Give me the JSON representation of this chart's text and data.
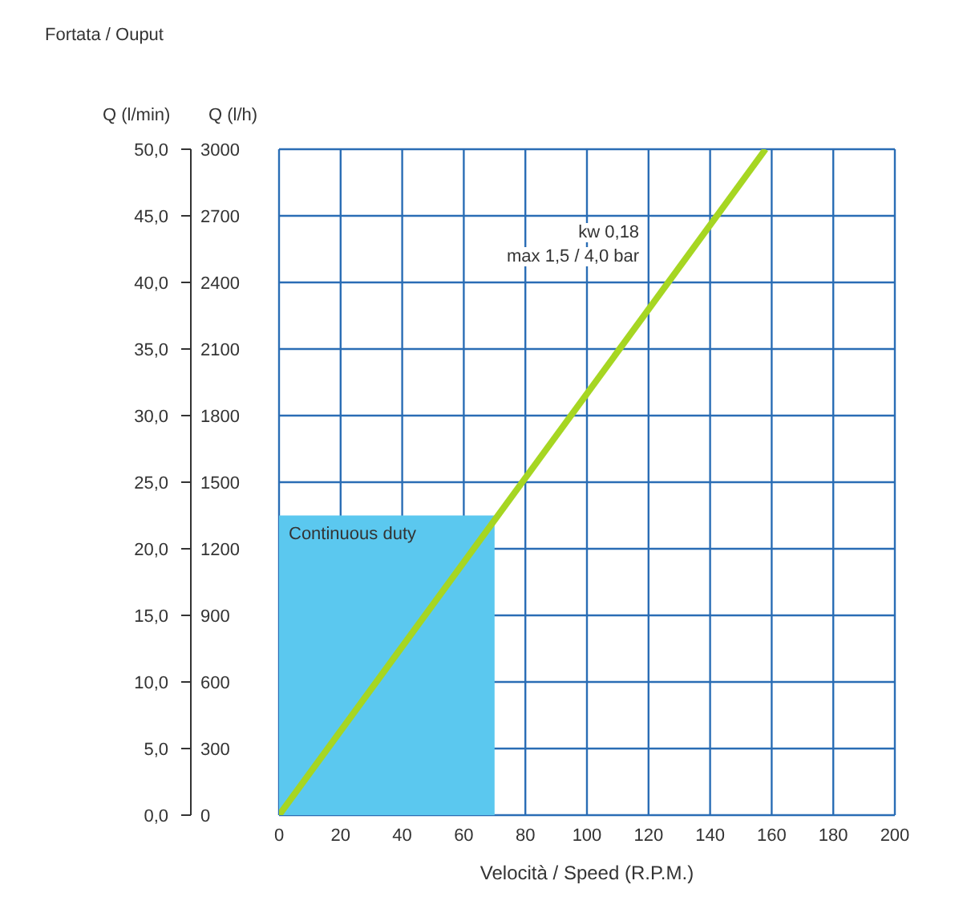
{
  "chart_data": {
    "type": "line",
    "title": "Fortata / Ouput",
    "xlabel": "Velocità / Speed (R.P.M.)",
    "ylabel": "Q (l/min)",
    "y2label": "Q (l/h)",
    "xlim": [
      0,
      200
    ],
    "xticks": [
      0,
      20,
      40,
      60,
      80,
      100,
      120,
      140,
      160,
      180,
      200
    ],
    "ylim": [
      0,
      50
    ],
    "yticks": [
      {
        "value": 0,
        "label": "0,0"
      },
      {
        "value": 5,
        "label": "5,0"
      },
      {
        "value": 10,
        "label": "10,0"
      },
      {
        "value": 15,
        "label": "15,0"
      },
      {
        "value": 20,
        "label": "20,0"
      },
      {
        "value": 25,
        "label": "25,0"
      },
      {
        "value": 30,
        "label": "30,0"
      },
      {
        "value": 35,
        "label": "35,0"
      },
      {
        "value": 40,
        "label": "40,0"
      },
      {
        "value": 45,
        "label": "45,0"
      },
      {
        "value": 50,
        "label": "50,0"
      }
    ],
    "y2lim": [
      0,
      3000
    ],
    "y2ticks": [
      0,
      300,
      600,
      900,
      1200,
      1500,
      1800,
      2100,
      2400,
      2700,
      3000
    ],
    "grid": true,
    "series": [
      {
        "type": "area",
        "axis": "y2",
        "color": "#5bc8ef",
        "x": [
          0,
          70
        ],
        "values": [
          1350,
          1350
        ]
      },
      {
        "color": "#a6d622",
        "x": [
          0,
          158
        ],
        "values": [
          0,
          50
        ]
      }
    ],
    "annotations": [
      "kw 0,18",
      "max 1,5 / 4,0 bar",
      {
        "text": "Continuous duty",
        "x": 0,
        "y": 22
      }
    ]
  }
}
